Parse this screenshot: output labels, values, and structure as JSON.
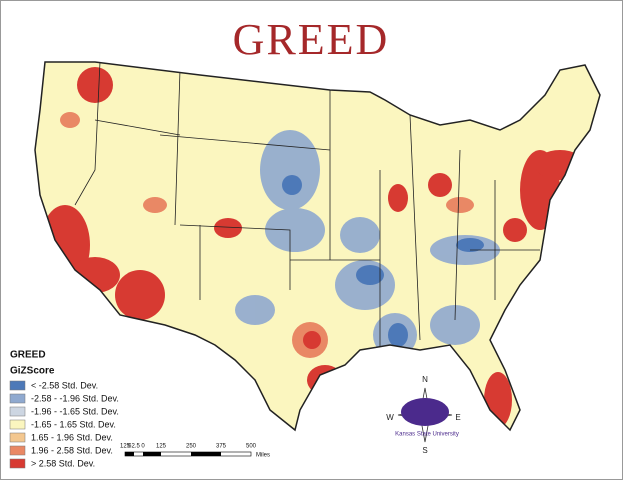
{
  "header": {
    "title": "GREED"
  },
  "legend": {
    "title": "GREED",
    "subtitle": "GiZScore",
    "items": [
      {
        "label": "< -2.58 Std. Dev.",
        "color": "#4d79b8"
      },
      {
        "label": "-2.58 - -1.96 Std. Dev.",
        "color": "#8fa9cf"
      },
      {
        "label": "-1.96 - -1.65 Std. Dev.",
        "color": "#cdd6e2"
      },
      {
        "label": "-1.65 - 1.65 Std. Dev.",
        "color": "#fbf6bf"
      },
      {
        "label": "1.65 - 1.96 Std. Dev.",
        "color": "#f3c78f"
      },
      {
        "label": "1.96 - 2.58 Std. Dev.",
        "color": "#e98865"
      },
      {
        "label": "> 2.58 Std. Dev.",
        "color": "#d73a32"
      }
    ]
  },
  "scale_bar": {
    "labels": [
      125,
      62.5,
      0,
      125,
      250,
      375,
      500
    ],
    "unit": "Miles"
  },
  "compass": {
    "north": "N",
    "east": "E",
    "south": "S",
    "west": "W",
    "caption": "Kansas State University"
  }
}
